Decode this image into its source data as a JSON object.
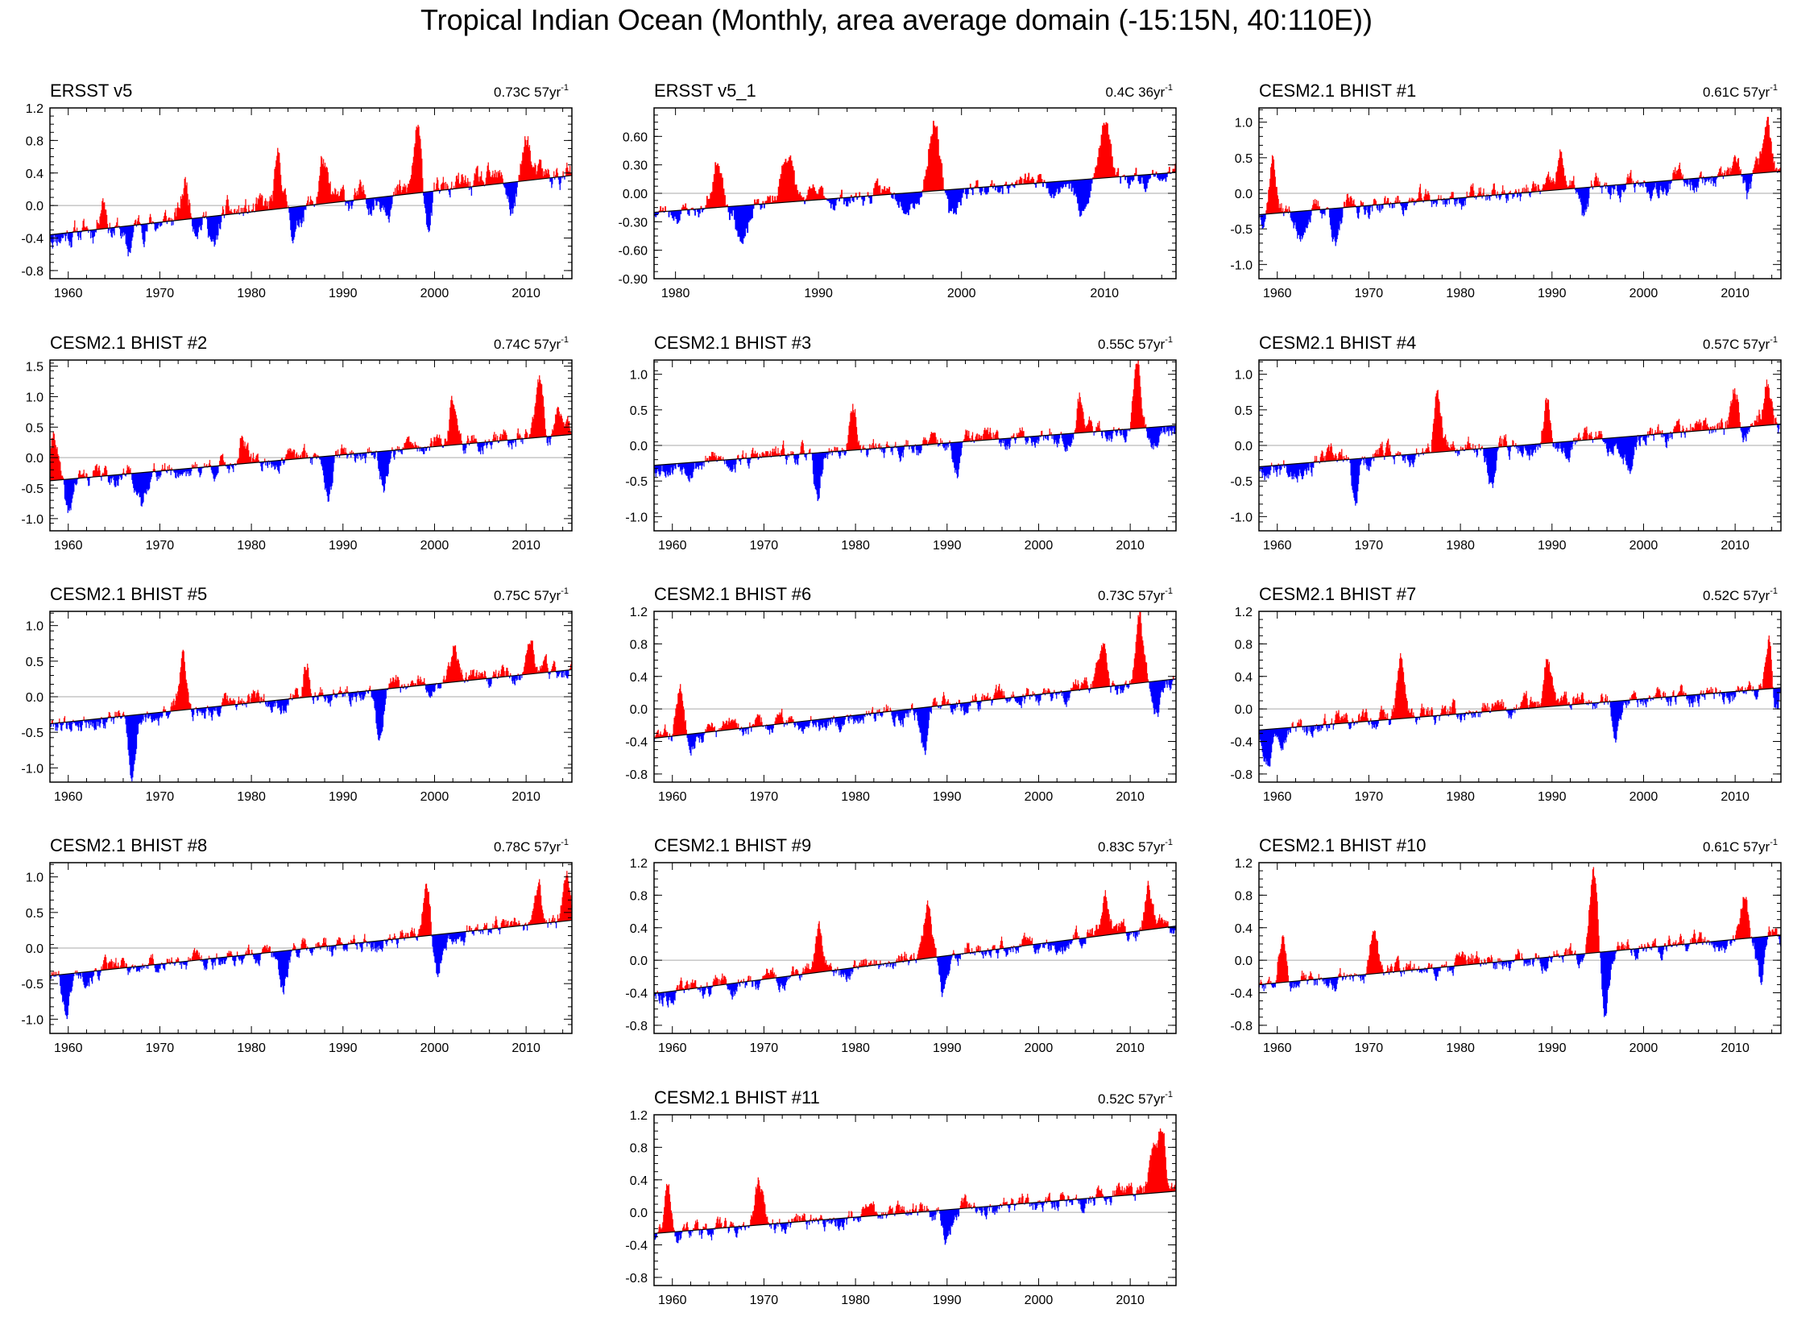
{
  "page_title": "Tropical Indian Ocean (Monthly, area average domain (-15:15N, 40:110E))",
  "colors": {
    "positive": "#ff0000",
    "negative": "#0000ff",
    "zero_line": "#aaaaaa",
    "trend_line": "#000000"
  },
  "chart_data": [
    {
      "type": "area",
      "title": "ERSST v5",
      "trend_label": "0.73C 57yr",
      "trend_sup": "-1",
      "xlim": [
        1958,
        2015
      ],
      "ylim": [
        -0.9,
        1.2
      ],
      "xticks": [
        1960,
        1970,
        1980,
        1990,
        2000,
        2010
      ],
      "yticks": [
        "1.2",
        "0.8",
        "0.4",
        "0.0",
        "-0.4",
        "-0.8"
      ],
      "ytick_values": [
        1.2,
        0.8,
        0.4,
        0.0,
        -0.4,
        -0.8
      ],
      "trend": [
        -0.36,
        0.37
      ],
      "amplitude": 0.34,
      "seed": 11,
      "events": [
        [
          1963.8,
          0.45
        ],
        [
          1966.5,
          -0.35
        ],
        [
          1972.8,
          0.45
        ],
        [
          1976,
          -0.45
        ],
        [
          1983,
          0.55
        ],
        [
          1984.8,
          -0.35
        ],
        [
          1987.8,
          0.55
        ],
        [
          1998.1,
          0.75
        ],
        [
          1999.3,
          -0.35
        ],
        [
          2010.1,
          0.55
        ],
        [
          2008.5,
          -0.35
        ]
      ]
    },
    {
      "type": "area",
      "title": "ERSST v5_1",
      "trend_label": "0.4C 36yr",
      "trend_sup": "-1",
      "xlim": [
        1978.5,
        2015
      ],
      "ylim": [
        -0.9,
        0.9
      ],
      "xticks": [
        1980,
        1990,
        2000,
        2010
      ],
      "yticks": [
        "0.60",
        "0.30",
        "0.00",
        "-0.30",
        "-0.60",
        "-0.90"
      ],
      "ytick_values": [
        0.6,
        0.3,
        0.0,
        -0.3,
        -0.6,
        -0.9
      ],
      "trend": [
        -0.2,
        0.22
      ],
      "amplitude": 0.25,
      "seed": 23,
      "events": [
        [
          1983,
          0.5
        ],
        [
          1984.8,
          -0.4
        ],
        [
          1987.8,
          0.55
        ],
        [
          1998.1,
          0.8
        ],
        [
          1999.3,
          -0.35
        ],
        [
          2010.1,
          0.55
        ],
        [
          2008.5,
          -0.4
        ]
      ]
    },
    {
      "type": "area",
      "title": "CESM2.1 BHIST #1",
      "trend_label": "0.61C 57yr",
      "trend_sup": "-1",
      "xlim": [
        1958,
        2015
      ],
      "ylim": [
        -1.2,
        1.2
      ],
      "xticks": [
        1960,
        1970,
        1980,
        1990,
        2000,
        2010
      ],
      "yticks": [
        "1.0",
        "0.5",
        "0.0",
        "-0.5",
        "-1.0"
      ],
      "ytick_values": [
        1.0,
        0.5,
        0.0,
        -0.5,
        -1.0
      ],
      "trend": [
        -0.3,
        0.31
      ],
      "amplitude": 0.32,
      "seed": 37,
      "events": [
        [
          1959.5,
          0.8
        ],
        [
          1962.5,
          -0.45
        ],
        [
          1966.5,
          -0.55
        ],
        [
          1991,
          0.45
        ],
        [
          1993.5,
          -0.5
        ],
        [
          2013.5,
          0.8
        ],
        [
          2011.5,
          -0.3
        ]
      ]
    },
    {
      "type": "area",
      "title": "CESM2.1 BHIST #2",
      "trend_label": "0.74C 57yr",
      "trend_sup": "-1",
      "xlim": [
        1958,
        2015
      ],
      "ylim": [
        -1.2,
        1.6
      ],
      "xticks": [
        1960,
        1970,
        1980,
        1990,
        2000,
        2010
      ],
      "yticks": [
        "1.5",
        "1.0",
        "0.5",
        "0.0",
        "-0.5",
        "-1.0"
      ],
      "ytick_values": [
        1.5,
        1.0,
        0.5,
        0.0,
        -0.5,
        -1.0
      ],
      "trend": [
        -0.38,
        0.38
      ],
      "amplitude": 0.35,
      "seed": 41,
      "events": [
        [
          1958.5,
          0.75
        ],
        [
          1960,
          -0.65
        ],
        [
          1968,
          -0.6
        ],
        [
          1979,
          0.5
        ],
        [
          1988.5,
          -0.5
        ],
        [
          1994.5,
          -0.55
        ],
        [
          2002,
          0.7
        ],
        [
          2011.5,
          0.85
        ],
        [
          2013.5,
          0.45
        ]
      ]
    },
    {
      "type": "area",
      "title": "CESM2.1 BHIST #3",
      "trend_label": "0.55C 57yr",
      "trend_sup": "-1",
      "xlim": [
        1958,
        2015
      ],
      "ylim": [
        -1.2,
        1.2
      ],
      "xticks": [
        1960,
        1970,
        1980,
        1990,
        2000,
        2010
      ],
      "yticks": [
        "1.0",
        "0.5",
        "0.0",
        "-0.5",
        "-1.0"
      ],
      "ytick_values": [
        1.0,
        0.5,
        0.0,
        -0.5,
        -1.0
      ],
      "trend": [
        -0.28,
        0.28
      ],
      "amplitude": 0.3,
      "seed": 53,
      "events": [
        [
          1975.8,
          -0.7
        ],
        [
          1979.8,
          0.55
        ],
        [
          1991,
          -0.5
        ],
        [
          2004.5,
          0.55
        ],
        [
          2010.8,
          0.95
        ],
        [
          2012.5,
          -0.4
        ]
      ]
    },
    {
      "type": "area",
      "title": "CESM2.1 BHIST #4",
      "trend_label": "0.57C 57yr",
      "trend_sup": "-1",
      "xlim": [
        1958,
        2015
      ],
      "ylim": [
        -1.2,
        1.2
      ],
      "xticks": [
        1960,
        1970,
        1980,
        1990,
        2000,
        2010
      ],
      "yticks": [
        "1.0",
        "0.5",
        "0.0",
        "-0.5",
        "-1.0"
      ],
      "ytick_values": [
        1.0,
        0.5,
        0.0,
        -0.5,
        -1.0
      ],
      "trend": [
        -0.3,
        0.3
      ],
      "amplitude": 0.32,
      "seed": 67,
      "events": [
        [
          1968.5,
          -0.55
        ],
        [
          1977.5,
          0.75
        ],
        [
          1983.5,
          -0.45
        ],
        [
          1989.5,
          0.65
        ],
        [
          1998.5,
          -0.6
        ],
        [
          2010,
          0.55
        ],
        [
          2013.5,
          0.6
        ]
      ]
    },
    {
      "type": "area",
      "title": "CESM2.1 BHIST #5",
      "trend_label": "0.75C 57yr",
      "trend_sup": "-1",
      "xlim": [
        1958,
        2015
      ],
      "ylim": [
        -1.2,
        1.2
      ],
      "xticks": [
        1960,
        1970,
        1980,
        1990,
        2000,
        2010
      ],
      "yticks": [
        "1.0",
        "0.5",
        "0.0",
        "-0.5",
        "-1.0"
      ],
      "ytick_values": [
        1.0,
        0.5,
        0.0,
        -0.5,
        -1.0
      ],
      "trend": [
        -0.38,
        0.38
      ],
      "amplitude": 0.3,
      "seed": 79,
      "events": [
        [
          1967,
          -0.8
        ],
        [
          1972.5,
          0.7
        ],
        [
          1986,
          0.5
        ],
        [
          1994,
          -0.7
        ],
        [
          2002.2,
          0.6
        ],
        [
          2010.5,
          0.45
        ]
      ]
    },
    {
      "type": "area",
      "title": "CESM2.1 BHIST #6",
      "trend_label": "0.73C 57yr",
      "trend_sup": "-1",
      "xlim": [
        1958,
        2015
      ],
      "ylim": [
        -0.9,
        1.2
      ],
      "xticks": [
        1960,
        1970,
        1980,
        1990,
        2000,
        2010
      ],
      "yticks": [
        "1.2",
        "0.8",
        "0.4",
        "0.0",
        "-0.4",
        "-0.8"
      ],
      "ytick_values": [
        1.2,
        0.8,
        0.4,
        0.0,
        -0.4,
        -0.8
      ],
      "trend": [
        -0.36,
        0.37
      ],
      "amplitude": 0.25,
      "seed": 83,
      "events": [
        [
          1960.8,
          0.55
        ],
        [
          1987.5,
          -0.55
        ],
        [
          2007,
          0.45
        ],
        [
          2011,
          0.75
        ],
        [
          2013,
          -0.3
        ]
      ]
    },
    {
      "type": "area",
      "title": "CESM2.1 BHIST #7",
      "trend_label": "0.52C 57yr",
      "trend_sup": "-1",
      "xlim": [
        1958,
        2015
      ],
      "ylim": [
        -0.9,
        1.2
      ],
      "xticks": [
        1960,
        1970,
        1980,
        1990,
        2000,
        2010
      ],
      "yticks": [
        "1.2",
        "0.8",
        "0.4",
        "0.0",
        "-0.4",
        "-0.8"
      ],
      "ytick_values": [
        1.2,
        0.8,
        0.4,
        0.0,
        -0.4,
        -0.8
      ],
      "trend": [
        -0.26,
        0.26
      ],
      "amplitude": 0.25,
      "seed": 97,
      "events": [
        [
          1959,
          -0.35
        ],
        [
          1973.5,
          0.7
        ],
        [
          1989.5,
          0.6
        ],
        [
          1997,
          -0.35
        ],
        [
          2013.8,
          0.8
        ],
        [
          2014.3,
          -0.45
        ]
      ]
    },
    {
      "type": "area",
      "title": "CESM2.1 BHIST #8",
      "trend_label": "0.78C 57yr",
      "trend_sup": "-1",
      "xlim": [
        1958,
        2015
      ],
      "ylim": [
        -1.2,
        1.2
      ],
      "xticks": [
        1960,
        1970,
        1980,
        1990,
        2000,
        2010
      ],
      "yticks": [
        "1.0",
        "0.5",
        "0.0",
        "-0.5",
        "-1.0"
      ],
      "ytick_values": [
        1.0,
        0.5,
        0.0,
        -0.5,
        -1.0
      ],
      "trend": [
        -0.39,
        0.39
      ],
      "amplitude": 0.28,
      "seed": 101,
      "events": [
        [
          1959.8,
          -0.5
        ],
        [
          1983.5,
          -0.55
        ],
        [
          1999.2,
          0.75
        ],
        [
          2000.3,
          -0.6
        ],
        [
          2011.3,
          0.6
        ],
        [
          2014.5,
          0.55
        ]
      ]
    },
    {
      "type": "area",
      "title": "CESM2.1 BHIST #9",
      "trend_label": "0.83C 57yr",
      "trend_sup": "-1",
      "xlim": [
        1958,
        2015
      ],
      "ylim": [
        -0.9,
        1.2
      ],
      "xticks": [
        1960,
        1970,
        1980,
        1990,
        2000,
        2010
      ],
      "yticks": [
        "1.2",
        "0.8",
        "0.4",
        "0.0",
        "-0.4",
        "-0.8"
      ],
      "ytick_values": [
        1.2,
        0.8,
        0.4,
        0.0,
        -0.4,
        -0.8
      ],
      "trend": [
        -0.41,
        0.42
      ],
      "amplitude": 0.25,
      "seed": 113,
      "events": [
        [
          1976,
          0.5
        ],
        [
          1987.8,
          0.65
        ],
        [
          1989.5,
          -0.45
        ],
        [
          2007.3,
          0.45
        ],
        [
          2012,
          0.55
        ]
      ]
    },
    {
      "type": "area",
      "title": "CESM2.1 BHIST #10",
      "trend_label": "0.61C 57yr",
      "trend_sup": "-1",
      "xlim": [
        1958,
        2015
      ],
      "ylim": [
        -0.9,
        1.2
      ],
      "xticks": [
        1960,
        1970,
        1980,
        1990,
        2000,
        2010
      ],
      "yticks": [
        "1.2",
        "0.8",
        "0.4",
        "0.0",
        "-0.4",
        "-0.8"
      ],
      "ytick_values": [
        1.2,
        0.8,
        0.4,
        0.0,
        -0.4,
        -0.8
      ],
      "trend": [
        -0.3,
        0.31
      ],
      "amplitude": 0.25,
      "seed": 127,
      "events": [
        [
          1960.5,
          0.6
        ],
        [
          1970.5,
          0.55
        ],
        [
          1994.5,
          1.0
        ],
        [
          1995.8,
          -0.7
        ],
        [
          2011,
          0.55
        ],
        [
          2012.8,
          -0.55
        ]
      ]
    },
    {
      "type": "area",
      "title": "CESM2.1 BHIST #11",
      "trend_label": "0.52C 57yr",
      "trend_sup": "-1",
      "xlim": [
        1958,
        2015
      ],
      "ylim": [
        -0.9,
        1.2
      ],
      "xticks": [
        1960,
        1970,
        1980,
        1990,
        2000,
        2010
      ],
      "yticks": [
        "1.2",
        "0.8",
        "0.4",
        "0.0",
        "-0.4",
        "-0.8"
      ],
      "ytick_values": [
        1.2,
        0.8,
        0.4,
        0.0,
        -0.4,
        -0.8
      ],
      "trend": [
        -0.26,
        0.26
      ],
      "amplitude": 0.25,
      "seed": 131,
      "events": [
        [
          1959.5,
          0.55
        ],
        [
          1969.5,
          0.55
        ],
        [
          1990,
          -0.45
        ],
        [
          2013.5,
          0.8
        ],
        [
          2012.5,
          0.6
        ]
      ]
    }
  ]
}
